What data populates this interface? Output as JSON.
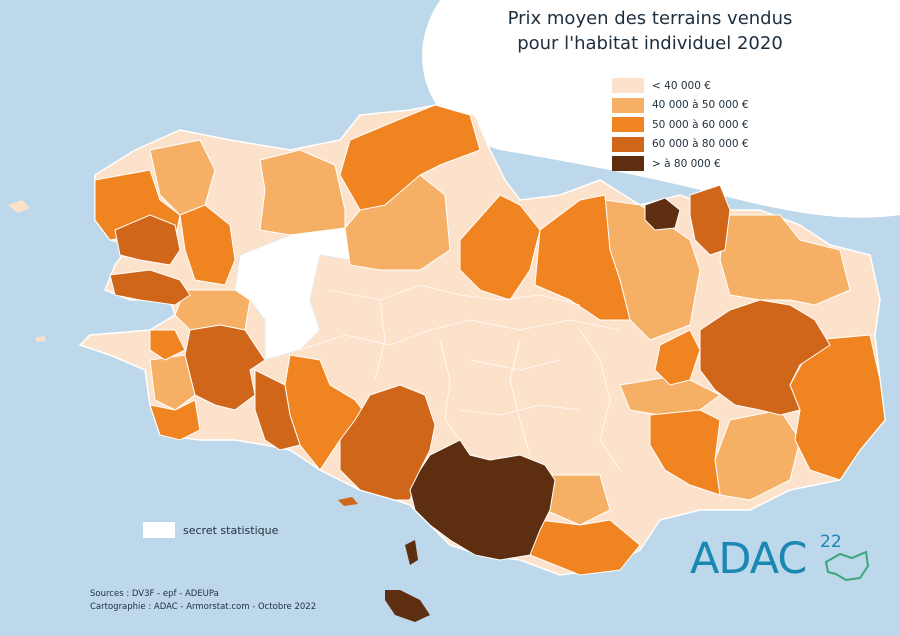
{
  "title": {
    "line1": "Prix moyen des terrains vendus",
    "line2": "pour l'habitat individuel 2020"
  },
  "colors": {
    "sea": "#bcd8ea",
    "land_cap": "#ffffff",
    "class1": "#fde2cb",
    "class2": "#f6b066",
    "class3": "#ef8420",
    "class4": "#cf661a",
    "class5": "#5e2e10",
    "secret": "#ffffff"
  },
  "legend": {
    "items": [
      {
        "label": "< 40 000 €",
        "color": "#fde2cb"
      },
      {
        "label": "40 000 à 50 000 €",
        "color": "#f6b066"
      },
      {
        "label": "50 000 à 60 000 €",
        "color": "#ef8420"
      },
      {
        "label": "60 000 à 80 000 €",
        "color": "#cf661a"
      },
      {
        "label": "> à 80 000 €",
        "color": "#5e2e10"
      }
    ],
    "secret_label": "secret statistique"
  },
  "sources": {
    "line1": "Sources : DV3F - epf - ADEUPa",
    "line2": "Cartographie : ADAC - Armorstat.com - Octobre 2022"
  },
  "logo": {
    "text": "ADAC",
    "superscript": "22"
  }
}
